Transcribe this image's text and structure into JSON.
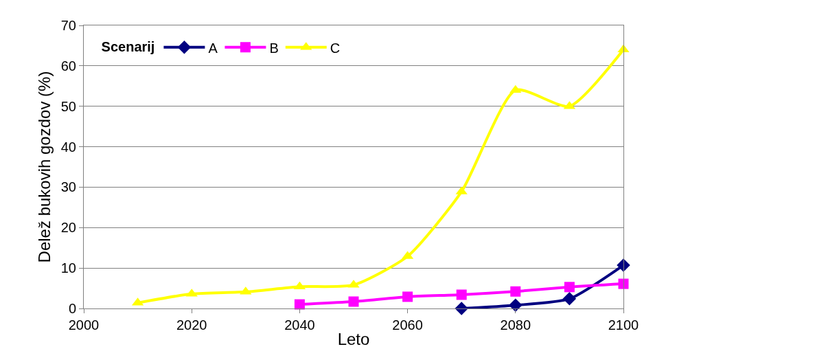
{
  "chart_data": {
    "type": "line",
    "xlabel": "Leto",
    "ylabel": "Delež bukovih gozdov (%)",
    "legend_title": "Scenarij",
    "legend": "top left",
    "grid": "y",
    "xlim": [
      2000,
      2100
    ],
    "xticks": [
      2000,
      2020,
      2040,
      2060,
      2080,
      2100
    ],
    "ylim": [
      0,
      70
    ],
    "yticks": [
      0,
      10,
      20,
      30,
      40,
      50,
      60,
      70
    ],
    "x": [
      2010,
      2020,
      2030,
      2040,
      2050,
      2060,
      2070,
      2080,
      2090,
      2100
    ],
    "series": [
      {
        "name": "A",
        "color": "#000080",
        "marker": "diamond",
        "values": [
          null,
          null,
          null,
          null,
          null,
          null,
          0,
          0.8,
          2.4,
          10.7
        ]
      },
      {
        "name": "B",
        "color": "#ff00ff",
        "marker": "square",
        "values": [
          null,
          null,
          null,
          1.0,
          1.7,
          2.9,
          3.4,
          4.2,
          5.3,
          6.1
        ]
      },
      {
        "name": "C",
        "color": "#ffff00",
        "marker": "triangle",
        "values": [
          1.4,
          3.6,
          4.1,
          5.4,
          5.8,
          12.9,
          28.9,
          54,
          50,
          64
        ]
      }
    ]
  }
}
